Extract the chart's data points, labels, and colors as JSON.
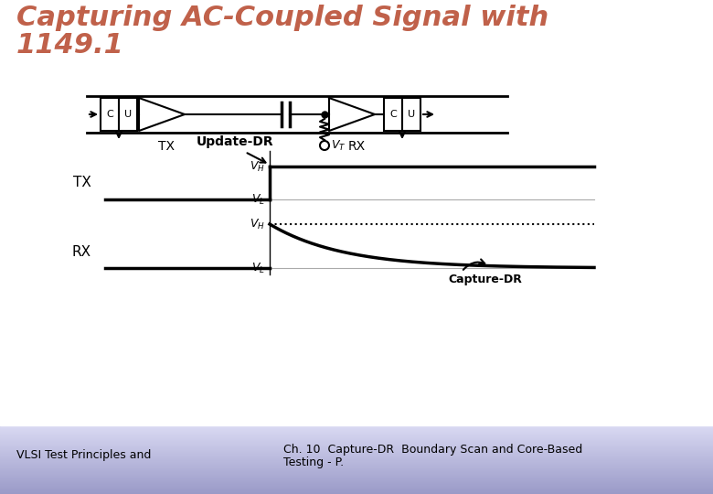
{
  "title_line1": "Capturing AC-Coupled Signal with",
  "title_line2": "1149.1",
  "title_color": "#c0614a",
  "title_fontsize": 22,
  "title_style": "italic",
  "title_weight": "bold",
  "bg_top": "#ffffff",
  "bg_bottom": "#9999cc",
  "footer_left": "VLSI Test Principles and",
  "footer_center_line1": "Ch. 10  Capture-DR  Boundary Scan and Core-Based",
  "footer_center_line2": "Testing - P.",
  "footer_fontsize": 9,
  "update_dr_label": "Update-DR",
  "tx_label": "TX",
  "rx_label": "RX",
  "capture_dr_label": "Capture-DR"
}
